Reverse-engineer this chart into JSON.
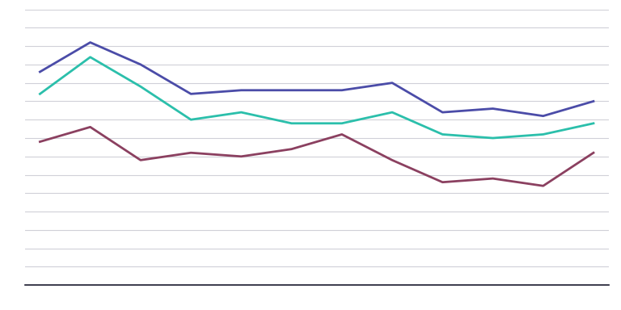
{
  "x": [
    0,
    1,
    2,
    3,
    4,
    5,
    6,
    7,
    8,
    9,
    10,
    11
  ],
  "blue_line": [
    68,
    76,
    70,
    62,
    63,
    63,
    63,
    65,
    57,
    58,
    56,
    60
  ],
  "teal_line": [
    62,
    72,
    64,
    55,
    57,
    54,
    54,
    57,
    51,
    50,
    51,
    54
  ],
  "mauve_line": [
    49,
    53,
    44,
    46,
    45,
    47,
    51,
    44,
    38,
    39,
    37,
    46
  ],
  "blue_color": "#4B4CA8",
  "teal_color": "#2BBFAB",
  "mauve_color": "#8B4060",
  "background_color": "#ffffff",
  "grid_color": "#d0d0d8",
  "line_width": 2.0,
  "ylim": [
    10,
    85
  ],
  "ytick_step": 5
}
